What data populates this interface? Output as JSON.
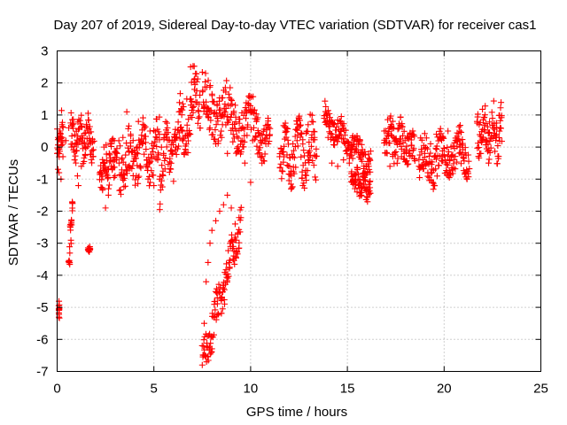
{
  "chart_data": {
    "type": "scatter",
    "title": "Day 207 of 2019, Sidereal Day-to-day VTEC variation (SDTVAR) for receiver cas1",
    "xlabel": "GPS time / hours",
    "ylabel": "SDTVAR / TECUs",
    "xlim": [
      0,
      25
    ],
    "ylim": [
      -7,
      3
    ],
    "xticks": [
      0,
      5,
      10,
      15,
      20,
      25
    ],
    "yticks": [
      -7,
      -6,
      -5,
      -4,
      -3,
      -2,
      -1,
      0,
      1,
      2,
      3
    ],
    "grid": true,
    "marker": "+",
    "color": "#ff0000",
    "series": [
      {
        "name": "SDTVAR",
        "segments": [
          {
            "x": [
              0.0,
              0.05,
              0.1,
              0.15,
              0.2,
              0.25
            ],
            "y": [
              -0.2,
              0.3,
              -0.8,
              0.5,
              -1.0,
              0.7
            ]
          },
          {
            "x": [
              0.3,
              0.45,
              0.6,
              0.75,
              0.9,
              1.05
            ],
            "y": [
              -0.3,
              0.2,
              0.6,
              0.0,
              -0.4,
              -0.9
            ]
          },
          {
            "x": [
              1.1,
              1.25,
              1.4,
              1.55,
              1.7,
              1.85
            ],
            "y": [
              -1.2,
              -0.6,
              0.1,
              0.6,
              0.2,
              -0.3
            ]
          },
          {
            "x": [
              2.2,
              2.35,
              2.5,
              2.65,
              2.8,
              2.95,
              3.1
            ],
            "y": [
              -0.8,
              -1.3,
              -1.9,
              -1.5,
              -0.6,
              0.2,
              -0.2
            ]
          },
          {
            "x": [
              3.2,
              3.4,
              3.6,
              3.8,
              4.0,
              4.2,
              4.4,
              4.6,
              4.8,
              5.0,
              5.2
            ],
            "y": [
              -0.5,
              0.3,
              1.1,
              0.4,
              -0.3,
              0.8,
              0.1,
              -0.6,
              0.5,
              -1.2,
              -0.4
            ]
          },
          {
            "x": [
              5.3,
              5.5,
              5.7,
              5.9,
              6.1,
              6.3,
              6.5,
              6.7,
              6.9,
              7.1,
              7.3
            ],
            "y": [
              -1.0,
              -0.2,
              0.6,
              -0.1,
              0.4,
              1.1,
              0.2,
              1.5,
              2.5,
              1.8,
              0.9
            ]
          },
          {
            "x": [
              7.5,
              7.6,
              7.7,
              7.8,
              7.9,
              8.0,
              8.2,
              8.4,
              8.6,
              8.8,
              9.0,
              9.2,
              9.4
            ],
            "y": [
              -6.8,
              -5.5,
              -4.2,
              -3.6,
              -3.0,
              -2.6,
              -2.3,
              -2.0,
              -1.8,
              -1.5,
              -1.9,
              -2.4,
              -2.2
            ]
          },
          {
            "x": [
              7.6,
              7.9,
              8.2,
              8.5,
              8.8,
              9.1,
              9.4,
              9.7,
              10.0,
              10.3,
              10.6,
              10.9
            ],
            "y": [
              1.3,
              0.6,
              0.1,
              0.3,
              -0.2,
              0.4,
              -0.1,
              -0.5,
              -1.1,
              0.8,
              -0.3,
              0.9
            ]
          },
          {
            "x": [
              11.5,
              11.8,
              12.1,
              12.4,
              12.7,
              13.0,
              13.3
            ],
            "y": [
              -0.3,
              0.5,
              -0.9,
              0.2,
              -1.2,
              -0.4,
              0.3
            ]
          },
          {
            "x": [
              13.8,
              14.0,
              14.2,
              14.5,
              14.8,
              15.1
            ],
            "y": [
              0.9,
              0.3,
              -0.5,
              -0.6,
              -0.4,
              -0.5
            ]
          },
          {
            "x": [
              15.3,
              15.5,
              15.7,
              15.9,
              16.1
            ],
            "y": [
              -1.0,
              -1.4,
              -1.5,
              -1.3,
              -0.6
            ]
          },
          {
            "x": [
              16.9,
              17.2,
              17.5,
              17.8,
              18.1,
              18.4
            ],
            "y": [
              0.5,
              -0.6,
              0.2,
              -0.3,
              0.3,
              -0.1
            ]
          },
          {
            "x": [
              18.7,
              19.0,
              19.3,
              19.6,
              19.9,
              20.2,
              20.5,
              20.8,
              21.1
            ],
            "y": [
              -0.6,
              -0.2,
              0.1,
              0.4,
              -0.3,
              0.5,
              -0.4,
              0.2,
              -0.8
            ]
          },
          {
            "x": [
              21.7,
              21.9,
              22.1,
              22.3,
              22.5,
              22.7,
              22.9
            ],
            "y": [
              0.8,
              -0.2,
              0.5,
              -0.5,
              0.9,
              0.3,
              0.6
            ]
          }
        ],
        "detail_segments": [
          {
            "from": [
              0.0,
              -0.2
            ],
            "to": [
              0.3,
              0.5
            ],
            "amp": 1.0
          },
          {
            "from": [
              0.1,
              -5.2
            ],
            "to": [
              0.1,
              -4.9
            ],
            "amp": 0.3
          },
          {
            "from": [
              0.6,
              -3.7
            ],
            "to": [
              0.8,
              -1.8
            ],
            "amp": 0.6
          },
          {
            "from": [
              0.7,
              0.3
            ],
            "to": [
              1.9,
              0.2
            ],
            "amp": 0.9
          },
          {
            "from": [
              1.6,
              -3.2
            ],
            "to": [
              1.7,
              -3.2
            ],
            "amp": 0.1
          },
          {
            "from": [
              2.2,
              -0.8
            ],
            "to": [
              3.1,
              -0.2
            ],
            "amp": 0.9
          },
          {
            "from": [
              3.2,
              -0.5
            ],
            "to": [
              5.3,
              0.0
            ],
            "amp": 1.3
          },
          {
            "from": [
              5.3,
              -0.8
            ],
            "to": [
              7.4,
              1.8
            ],
            "amp": 1.3
          },
          {
            "from": [
              7.5,
              -6.8
            ],
            "to": [
              9.5,
              -2.3
            ],
            "amp": 0.8
          },
          {
            "from": [
              7.5,
              1.4
            ],
            "to": [
              11.0,
              0.2
            ],
            "amp": 1.2
          },
          {
            "from": [
              11.5,
              -0.3
            ],
            "to": [
              13.4,
              0.0
            ],
            "amp": 1.3
          },
          {
            "from": [
              13.8,
              0.9
            ],
            "to": [
              16.2,
              -0.5
            ],
            "amp": 0.6
          },
          {
            "from": [
              15.2,
              -0.9
            ],
            "to": [
              16.2,
              -1.4
            ],
            "amp": 0.5
          },
          {
            "from": [
              16.9,
              0.4
            ],
            "to": [
              18.5,
              -0.1
            ],
            "amp": 0.9
          },
          {
            "from": [
              18.7,
              -0.5
            ],
            "to": [
              21.3,
              -0.1
            ],
            "amp": 1.0
          },
          {
            "from": [
              21.7,
              0.6
            ],
            "to": [
              23.0,
              0.4
            ],
            "amp": 1.2
          }
        ]
      }
    ]
  }
}
